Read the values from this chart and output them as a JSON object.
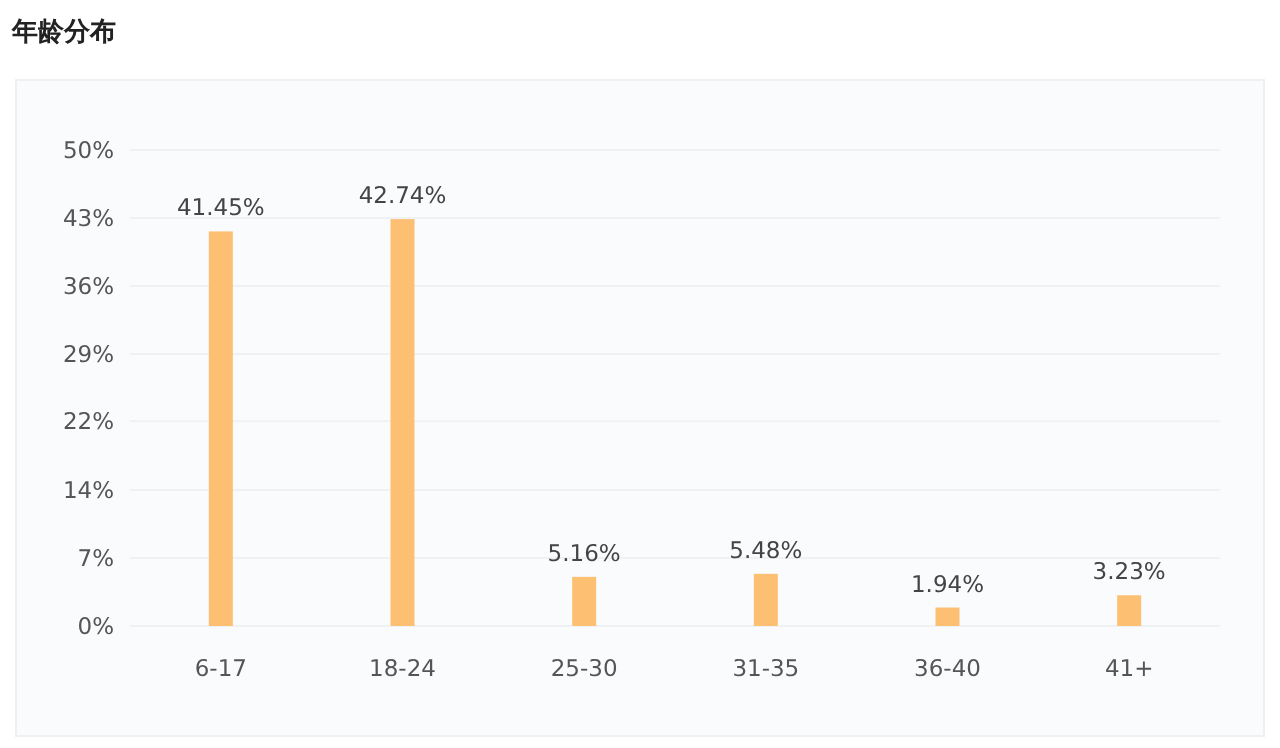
{
  "chart_data": {
    "type": "bar",
    "title": "年龄分布",
    "categories": [
      "6-17",
      "18-24",
      "25-30",
      "31-35",
      "36-40",
      "41+"
    ],
    "values": [
      41.45,
      42.74,
      5.16,
      5.48,
      1.94,
      3.23
    ],
    "value_labels": [
      "41.45%",
      "42.74%",
      "5.16%",
      "5.48%",
      "1.94%",
      "3.23%"
    ],
    "color": "#fdbf72",
    "ylim": [
      0,
      50
    ],
    "yticks": [
      {
        "value": 0,
        "label": "0%"
      },
      {
        "value": 7.14,
        "label": "7%"
      },
      {
        "value": 14.29,
        "label": "14%"
      },
      {
        "value": 21.5,
        "label": "22%"
      },
      {
        "value": 28.57,
        "label": "29%"
      },
      {
        "value": 35.71,
        "label": "36%"
      },
      {
        "value": 42.86,
        "label": "43%"
      },
      {
        "value": 50,
        "label": "50%"
      }
    ],
    "grid": "y"
  }
}
